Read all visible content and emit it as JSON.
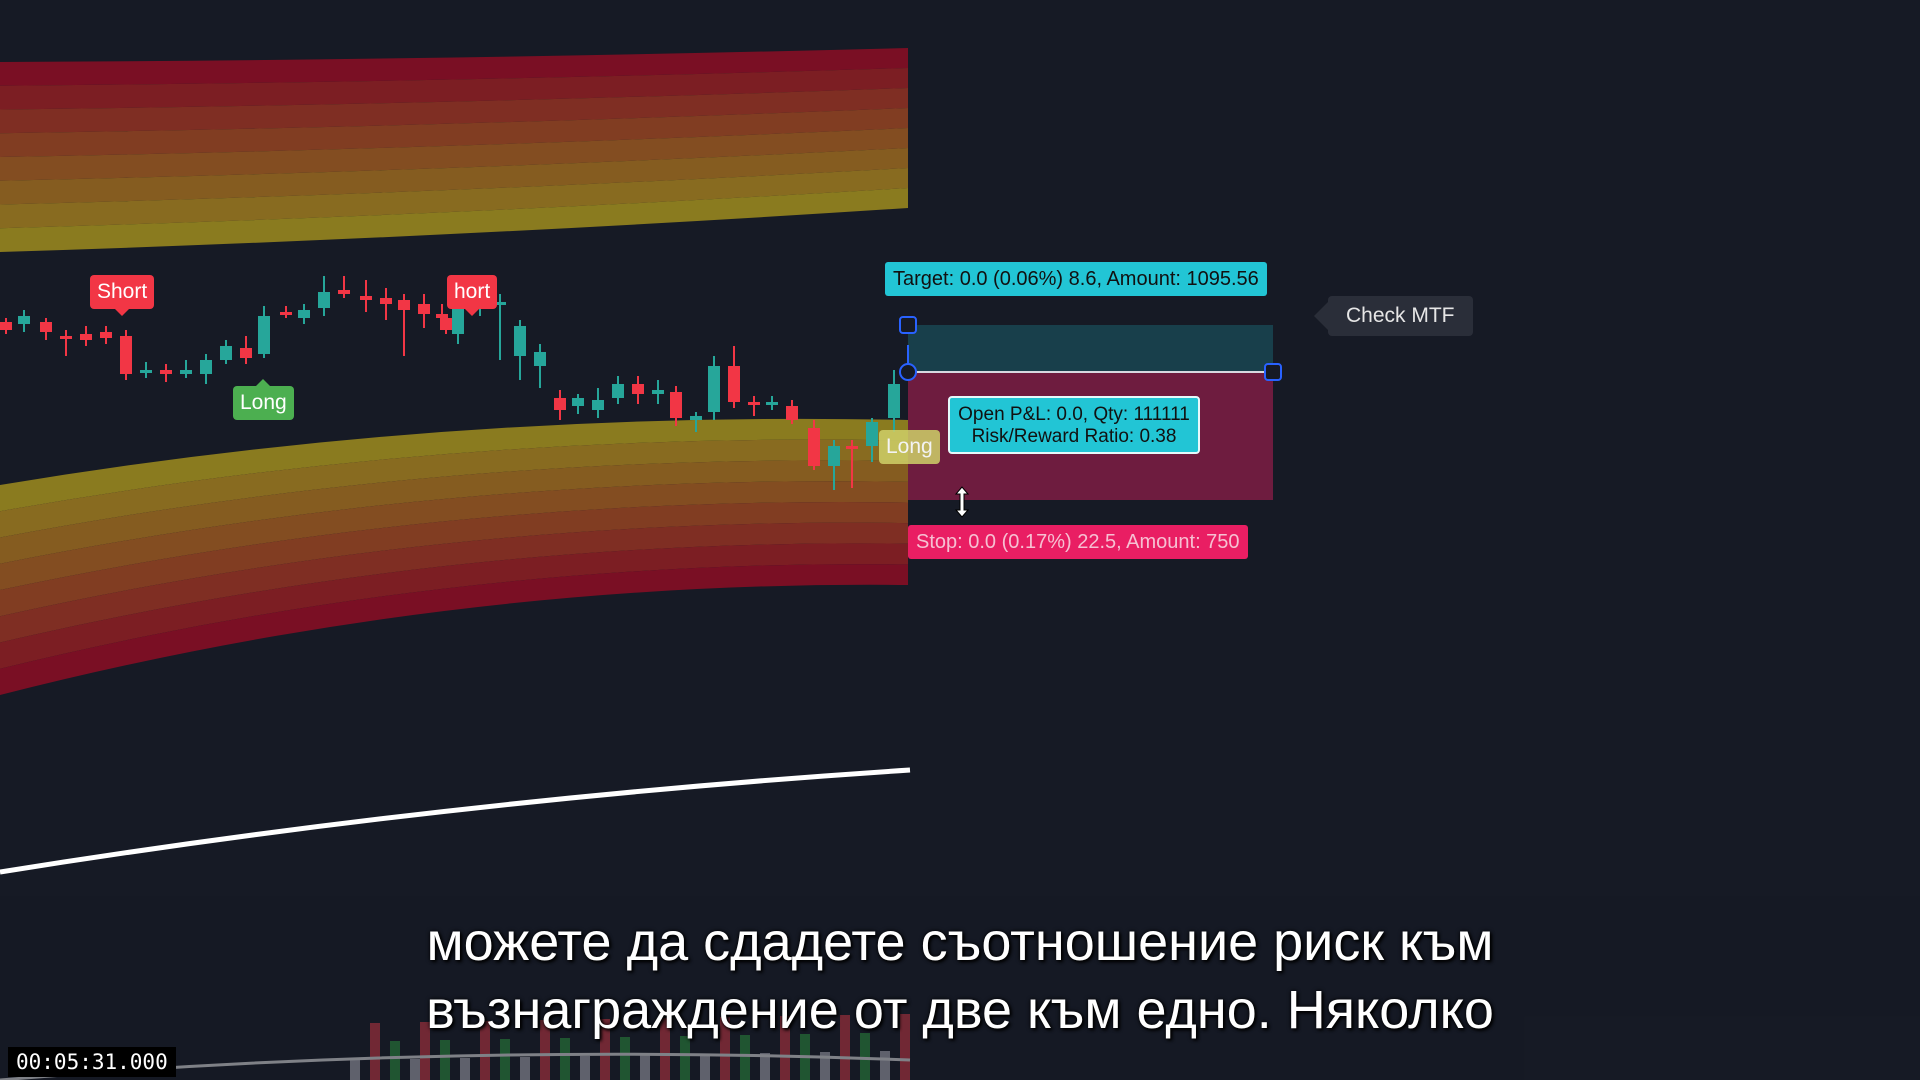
{
  "colors": {
    "background": "#161a25",
    "bull": "#26a69a",
    "bear": "#f23645",
    "target_zone": "#22c5d5",
    "stop_zone": "#e91e63",
    "band_outer": "#7a0f24",
    "band_inner": "#8c8a1e"
  },
  "signals": {
    "short_1": "Short",
    "short_2": "hort",
    "long_1": "Long",
    "long_2": "Long"
  },
  "position_tool": {
    "target_label": "Target: 0.0 (0.06%) 8.6, Amount: 1095.56",
    "stop_label": "Stop: 0.0 (0.17%) 22.5, Amount: 750",
    "info_line1": "Open P&L: 0.0, Qty: 111111",
    "info_line2": "Risk/Reward Ratio: 0.38"
  },
  "check_mtf_label": "Check MTF",
  "subtitle_line1": "можете да сдадете съотношение риск към",
  "subtitle_line2": "възнаграждение от две към едно. Няколко",
  "timestamp": "00:05:31.000",
  "icons": {
    "cursor": "resize-vertical-icon"
  }
}
